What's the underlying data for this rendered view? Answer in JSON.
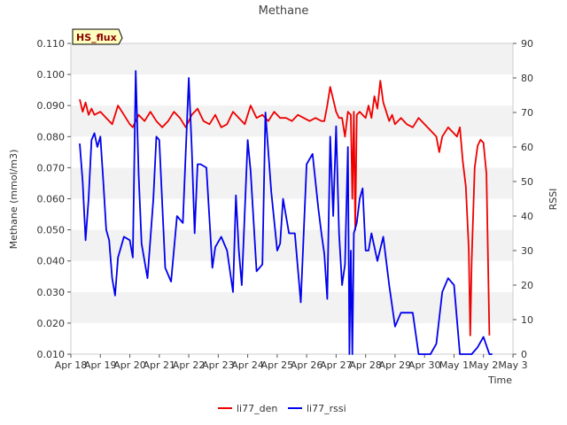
{
  "chart_data": {
    "type": "line",
    "title": "Methane",
    "xlabel": "Time",
    "ylabel": "Methane (mmol/m3)",
    "y2label": "RSSI",
    "badge": "HS_flux",
    "x_ticks": [
      "Apr 18",
      "Apr 19",
      "Apr 20",
      "Apr 21",
      "Apr 22",
      "Apr 23",
      "Apr 24",
      "Apr 25",
      "Apr 26",
      "Apr 27",
      "Apr 28",
      "Apr 29",
      "Apr 30",
      "May 1",
      "May 2",
      "May 3"
    ],
    "y_ticks": [
      "0.010",
      "0.020",
      "0.030",
      "0.040",
      "0.050",
      "0.060",
      "0.070",
      "0.080",
      "0.090",
      "0.100",
      "0.110"
    ],
    "y2_ticks": [
      "0",
      "10",
      "20",
      "30",
      "40",
      "50",
      "60",
      "70",
      "80",
      "90"
    ],
    "xlim": [
      0,
      15
    ],
    "ylim": [
      0.01,
      0.11
    ],
    "y2lim": [
      0,
      90
    ],
    "grid": "horizontal bands",
    "legend": "bottom-center",
    "series": [
      {
        "name": "li77_den",
        "color": "#ee0000",
        "axis": "left",
        "x": [
          0.3,
          0.4,
          0.5,
          0.6,
          0.7,
          0.8,
          1.0,
          1.2,
          1.4,
          1.6,
          1.8,
          2.0,
          2.1,
          2.3,
          2.5,
          2.7,
          2.9,
          3.1,
          3.3,
          3.5,
          3.7,
          3.9,
          4.1,
          4.3,
          4.5,
          4.7,
          4.9,
          5.1,
          5.3,
          5.5,
          5.7,
          5.9,
          6.1,
          6.3,
          6.5,
          6.7,
          6.9,
          7.1,
          7.3,
          7.5,
          7.7,
          7.9,
          8.1,
          8.3,
          8.5,
          8.6,
          8.7,
          8.8,
          8.9,
          9.0,
          9.1,
          9.2,
          9.3,
          9.4,
          9.5,
          9.55,
          9.6,
          9.65,
          9.7,
          9.8,
          9.9,
          10.0,
          10.1,
          10.2,
          10.3,
          10.4,
          10.5,
          10.6,
          10.7,
          10.8,
          10.9,
          11.0,
          11.2,
          11.4,
          11.6,
          11.8,
          12.0,
          12.2,
          12.4,
          12.5,
          12.6,
          12.8,
          13.0,
          13.1,
          13.2,
          13.3,
          13.4,
          13.5,
          13.55,
          13.6,
          13.7,
          13.8,
          13.9,
          14.0,
          14.1,
          14.2
        ],
        "values": [
          0.092,
          0.088,
          0.091,
          0.087,
          0.089,
          0.087,
          0.088,
          0.086,
          0.084,
          0.09,
          0.087,
          0.084,
          0.083,
          0.087,
          0.085,
          0.088,
          0.085,
          0.083,
          0.085,
          0.088,
          0.086,
          0.083,
          0.087,
          0.089,
          0.085,
          0.084,
          0.087,
          0.083,
          0.084,
          0.088,
          0.086,
          0.084,
          0.09,
          0.086,
          0.087,
          0.085,
          0.088,
          0.086,
          0.086,
          0.085,
          0.087,
          0.086,
          0.085,
          0.086,
          0.085,
          0.085,
          0.09,
          0.096,
          0.092,
          0.088,
          0.086,
          0.086,
          0.08,
          0.088,
          0.087,
          0.06,
          0.088,
          0.05,
          0.087,
          0.088,
          0.087,
          0.086,
          0.09,
          0.086,
          0.093,
          0.089,
          0.098,
          0.091,
          0.088,
          0.085,
          0.087,
          0.084,
          0.086,
          0.084,
          0.083,
          0.086,
          0.084,
          0.082,
          0.08,
          0.075,
          0.08,
          0.083,
          0.081,
          0.08,
          0.083,
          0.072,
          0.064,
          0.044,
          0.016,
          0.04,
          0.07,
          0.077,
          0.079,
          0.078,
          0.068,
          0.016
        ]
      },
      {
        "name": "li77_rssi",
        "color": "#0000ee",
        "axis": "right",
        "x": [
          0.3,
          0.4,
          0.5,
          0.6,
          0.7,
          0.8,
          0.9,
          1.0,
          1.1,
          1.2,
          1.3,
          1.4,
          1.5,
          1.6,
          1.8,
          2.0,
          2.1,
          2.2,
          2.3,
          2.4,
          2.6,
          2.8,
          2.9,
          3.0,
          3.2,
          3.4,
          3.6,
          3.8,
          4.0,
          4.1,
          4.2,
          4.3,
          4.4,
          4.6,
          4.8,
          4.9,
          5.1,
          5.3,
          5.5,
          5.6,
          5.7,
          5.8,
          6.0,
          6.1,
          6.3,
          6.5,
          6.6,
          6.8,
          7.0,
          7.1,
          7.2,
          7.4,
          7.6,
          7.8,
          8.0,
          8.2,
          8.4,
          8.5,
          8.6,
          8.7,
          8.8,
          8.9,
          9.0,
          9.1,
          9.2,
          9.3,
          9.4,
          9.45,
          9.5,
          9.55,
          9.6,
          9.7,
          9.8,
          9.9,
          10.0,
          10.1,
          10.2,
          10.4,
          10.6,
          10.8,
          11.0,
          11.2,
          11.4,
          11.6,
          11.8,
          12.0,
          12.2,
          12.4,
          12.6,
          12.8,
          13.0,
          13.2,
          13.4,
          13.6,
          13.8,
          14.0,
          14.2,
          14.3
        ],
        "values": [
          61,
          50,
          33,
          45,
          62,
          64,
          60,
          63,
          50,
          36,
          33,
          22,
          17,
          28,
          34,
          33,
          28,
          82,
          52,
          32,
          22,
          45,
          63,
          62,
          25,
          21,
          40,
          38,
          80,
          60,
          35,
          55,
          55,
          54,
          25,
          31,
          34,
          30,
          18,
          46,
          30,
          20,
          62,
          53,
          24,
          26,
          70,
          47,
          30,
          32,
          45,
          35,
          35,
          15,
          55,
          58,
          42,
          35,
          29,
          16,
          63,
          40,
          66,
          35,
          20,
          26,
          60,
          0,
          30,
          0,
          35,
          38,
          45,
          48,
          30,
          30,
          35,
          27,
          34,
          20,
          8,
          12,
          12,
          12,
          0,
          0,
          0,
          3,
          18,
          22,
          20,
          0,
          0,
          0,
          2,
          5,
          0,
          0
        ]
      }
    ]
  }
}
